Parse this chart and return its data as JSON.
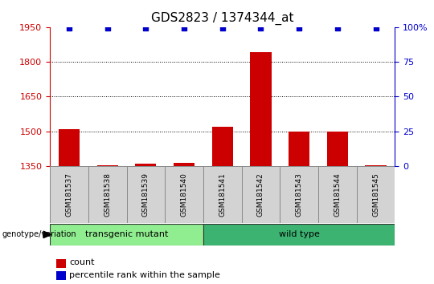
{
  "title": "GDS2823 / 1374344_at",
  "samples": [
    "GSM181537",
    "GSM181538",
    "GSM181539",
    "GSM181540",
    "GSM181541",
    "GSM181542",
    "GSM181543",
    "GSM181544",
    "GSM181545"
  ],
  "counts": [
    1510,
    1355,
    1360,
    1365,
    1520,
    1840,
    1500,
    1500,
    1355
  ],
  "percentile_ranks": [
    99,
    99,
    99,
    99,
    99,
    99,
    99,
    99,
    99
  ],
  "ylim_left": [
    1350,
    1950
  ],
  "ylim_right": [
    0,
    100
  ],
  "yticks_left": [
    1350,
    1500,
    1650,
    1800,
    1950
  ],
  "yticks_right": [
    0,
    25,
    50,
    75,
    100
  ],
  "groups": [
    {
      "label": "transgenic mutant",
      "indices": [
        0,
        1,
        2,
        3
      ],
      "color": "#90EE90"
    },
    {
      "label": "wild type",
      "indices": [
        4,
        5,
        6,
        7,
        8
      ],
      "color": "#3CB371"
    }
  ],
  "bar_color": "#CC0000",
  "dot_color": "#0000CC",
  "background_color": "#ffffff",
  "sample_box_color": "#D3D3D3",
  "left_axis_color": "#CC0000",
  "right_axis_color": "#0000CC",
  "grid_color": "#000000",
  "group_label": "genotype/variation",
  "legend_items": [
    {
      "label": "count",
      "color": "#CC0000"
    },
    {
      "label": "percentile rank within the sample",
      "color": "#0000CC"
    }
  ]
}
